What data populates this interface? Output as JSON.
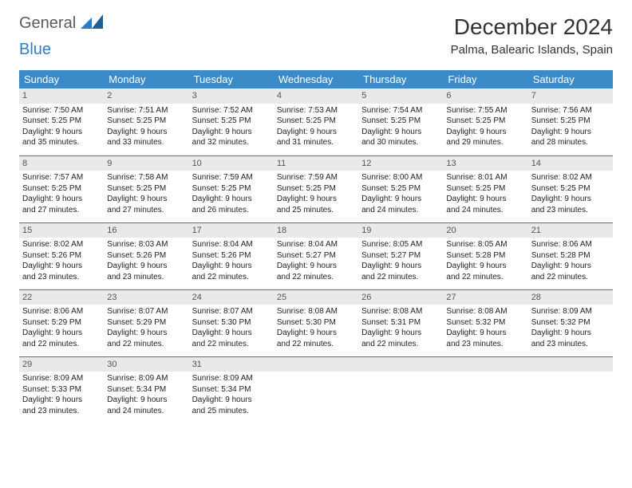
{
  "logo": {
    "part1": "General",
    "part2": "Blue"
  },
  "title": "December 2024",
  "location": "Palma, Balearic Islands, Spain",
  "colors": {
    "header_bg": "#3b8bc9",
    "accent": "#2d7dc4",
    "daynum_bg": "#e9e9e9",
    "text": "#222222",
    "logo_gray": "#5b5b5b"
  },
  "weekdays": [
    "Sunday",
    "Monday",
    "Tuesday",
    "Wednesday",
    "Thursday",
    "Friday",
    "Saturday"
  ],
  "weeks": [
    [
      {
        "day": "1",
        "sunrise": "Sunrise: 7:50 AM",
        "sunset": "Sunset: 5:25 PM",
        "d1": "Daylight: 9 hours",
        "d2": "and 35 minutes."
      },
      {
        "day": "2",
        "sunrise": "Sunrise: 7:51 AM",
        "sunset": "Sunset: 5:25 PM",
        "d1": "Daylight: 9 hours",
        "d2": "and 33 minutes."
      },
      {
        "day": "3",
        "sunrise": "Sunrise: 7:52 AM",
        "sunset": "Sunset: 5:25 PM",
        "d1": "Daylight: 9 hours",
        "d2": "and 32 minutes."
      },
      {
        "day": "4",
        "sunrise": "Sunrise: 7:53 AM",
        "sunset": "Sunset: 5:25 PM",
        "d1": "Daylight: 9 hours",
        "d2": "and 31 minutes."
      },
      {
        "day": "5",
        "sunrise": "Sunrise: 7:54 AM",
        "sunset": "Sunset: 5:25 PM",
        "d1": "Daylight: 9 hours",
        "d2": "and 30 minutes."
      },
      {
        "day": "6",
        "sunrise": "Sunrise: 7:55 AM",
        "sunset": "Sunset: 5:25 PM",
        "d1": "Daylight: 9 hours",
        "d2": "and 29 minutes."
      },
      {
        "day": "7",
        "sunrise": "Sunrise: 7:56 AM",
        "sunset": "Sunset: 5:25 PM",
        "d1": "Daylight: 9 hours",
        "d2": "and 28 minutes."
      }
    ],
    [
      {
        "day": "8",
        "sunrise": "Sunrise: 7:57 AM",
        "sunset": "Sunset: 5:25 PM",
        "d1": "Daylight: 9 hours",
        "d2": "and 27 minutes."
      },
      {
        "day": "9",
        "sunrise": "Sunrise: 7:58 AM",
        "sunset": "Sunset: 5:25 PM",
        "d1": "Daylight: 9 hours",
        "d2": "and 27 minutes."
      },
      {
        "day": "10",
        "sunrise": "Sunrise: 7:59 AM",
        "sunset": "Sunset: 5:25 PM",
        "d1": "Daylight: 9 hours",
        "d2": "and 26 minutes."
      },
      {
        "day": "11",
        "sunrise": "Sunrise: 7:59 AM",
        "sunset": "Sunset: 5:25 PM",
        "d1": "Daylight: 9 hours",
        "d2": "and 25 minutes."
      },
      {
        "day": "12",
        "sunrise": "Sunrise: 8:00 AM",
        "sunset": "Sunset: 5:25 PM",
        "d1": "Daylight: 9 hours",
        "d2": "and 24 minutes."
      },
      {
        "day": "13",
        "sunrise": "Sunrise: 8:01 AM",
        "sunset": "Sunset: 5:25 PM",
        "d1": "Daylight: 9 hours",
        "d2": "and 24 minutes."
      },
      {
        "day": "14",
        "sunrise": "Sunrise: 8:02 AM",
        "sunset": "Sunset: 5:25 PM",
        "d1": "Daylight: 9 hours",
        "d2": "and 23 minutes."
      }
    ],
    [
      {
        "day": "15",
        "sunrise": "Sunrise: 8:02 AM",
        "sunset": "Sunset: 5:26 PM",
        "d1": "Daylight: 9 hours",
        "d2": "and 23 minutes."
      },
      {
        "day": "16",
        "sunrise": "Sunrise: 8:03 AM",
        "sunset": "Sunset: 5:26 PM",
        "d1": "Daylight: 9 hours",
        "d2": "and 23 minutes."
      },
      {
        "day": "17",
        "sunrise": "Sunrise: 8:04 AM",
        "sunset": "Sunset: 5:26 PM",
        "d1": "Daylight: 9 hours",
        "d2": "and 22 minutes."
      },
      {
        "day": "18",
        "sunrise": "Sunrise: 8:04 AM",
        "sunset": "Sunset: 5:27 PM",
        "d1": "Daylight: 9 hours",
        "d2": "and 22 minutes."
      },
      {
        "day": "19",
        "sunrise": "Sunrise: 8:05 AM",
        "sunset": "Sunset: 5:27 PM",
        "d1": "Daylight: 9 hours",
        "d2": "and 22 minutes."
      },
      {
        "day": "20",
        "sunrise": "Sunrise: 8:05 AM",
        "sunset": "Sunset: 5:28 PM",
        "d1": "Daylight: 9 hours",
        "d2": "and 22 minutes."
      },
      {
        "day": "21",
        "sunrise": "Sunrise: 8:06 AM",
        "sunset": "Sunset: 5:28 PM",
        "d1": "Daylight: 9 hours",
        "d2": "and 22 minutes."
      }
    ],
    [
      {
        "day": "22",
        "sunrise": "Sunrise: 8:06 AM",
        "sunset": "Sunset: 5:29 PM",
        "d1": "Daylight: 9 hours",
        "d2": "and 22 minutes."
      },
      {
        "day": "23",
        "sunrise": "Sunrise: 8:07 AM",
        "sunset": "Sunset: 5:29 PM",
        "d1": "Daylight: 9 hours",
        "d2": "and 22 minutes."
      },
      {
        "day": "24",
        "sunrise": "Sunrise: 8:07 AM",
        "sunset": "Sunset: 5:30 PM",
        "d1": "Daylight: 9 hours",
        "d2": "and 22 minutes."
      },
      {
        "day": "25",
        "sunrise": "Sunrise: 8:08 AM",
        "sunset": "Sunset: 5:30 PM",
        "d1": "Daylight: 9 hours",
        "d2": "and 22 minutes."
      },
      {
        "day": "26",
        "sunrise": "Sunrise: 8:08 AM",
        "sunset": "Sunset: 5:31 PM",
        "d1": "Daylight: 9 hours",
        "d2": "and 22 minutes."
      },
      {
        "day": "27",
        "sunrise": "Sunrise: 8:08 AM",
        "sunset": "Sunset: 5:32 PM",
        "d1": "Daylight: 9 hours",
        "d2": "and 23 minutes."
      },
      {
        "day": "28",
        "sunrise": "Sunrise: 8:09 AM",
        "sunset": "Sunset: 5:32 PM",
        "d1": "Daylight: 9 hours",
        "d2": "and 23 minutes."
      }
    ],
    [
      {
        "day": "29",
        "sunrise": "Sunrise: 8:09 AM",
        "sunset": "Sunset: 5:33 PM",
        "d1": "Daylight: 9 hours",
        "d2": "and 23 minutes."
      },
      {
        "day": "30",
        "sunrise": "Sunrise: 8:09 AM",
        "sunset": "Sunset: 5:34 PM",
        "d1": "Daylight: 9 hours",
        "d2": "and 24 minutes."
      },
      {
        "day": "31",
        "sunrise": "Sunrise: 8:09 AM",
        "sunset": "Sunset: 5:34 PM",
        "d1": "Daylight: 9 hours",
        "d2": "and 25 minutes."
      },
      null,
      null,
      null,
      null
    ]
  ]
}
